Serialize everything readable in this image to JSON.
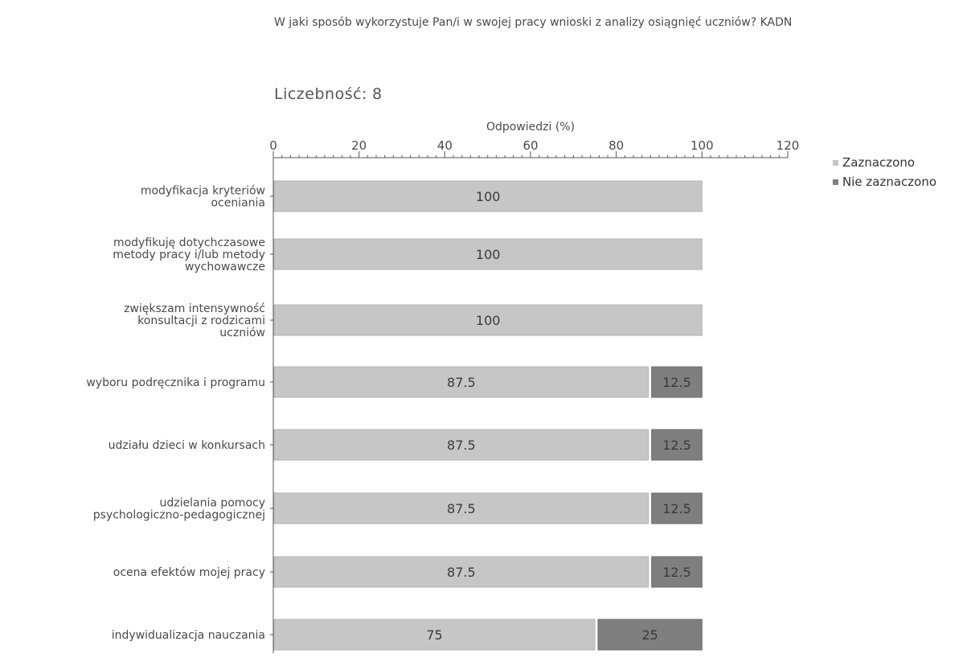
{
  "chart_data": {
    "type": "bar",
    "orientation": "horizontal",
    "stacked": true,
    "title": "W jaki sposób wykorzystuje Pan/i w swojej pracy wnioski z analizy osiągnięć uczniów? KADN",
    "count_label": "Liczebność:",
    "count_value": "8",
    "xlabel": "Odpowiedzi (%)",
    "xlim": [
      0,
      120
    ],
    "xticks": [
      0,
      20,
      40,
      60,
      80,
      100,
      120
    ],
    "legend_position": "top-right",
    "categories": [
      "modyfikacja kryteriów oceniania",
      "modyfikuję dotychczasowe metody pracy i/lub metody wychowawcze",
      "zwiększam intensywność konsultacji z rodzicami uczniów",
      "wyboru podręcznika i programu",
      "udziału dzieci w konkursach",
      "udzielania pomocy psychologiczno-pedagogicznej",
      "ocena efektów mojej pracy",
      "indywidualizacja nauczania"
    ],
    "category_lines": [
      [
        "modyfikacja kryteriów",
        "oceniania"
      ],
      [
        "modyfikuję dotychczasowe",
        "metody pracy i/lub metody",
        "wychowawcze"
      ],
      [
        "zwiększam intensywność",
        "konsultacji z rodzicami",
        "uczniów"
      ],
      [
        "wyboru podręcznika i programu"
      ],
      [
        "udziału dzieci w konkursach"
      ],
      [
        "udzielania pomocy",
        "psychologiczno-pedagogicznej"
      ],
      [
        "ocena efektów mojej pracy"
      ],
      [
        "indywidualizacja nauczania"
      ]
    ],
    "series": [
      {
        "name": "Zaznaczono",
        "color": "#c6c6c6",
        "values": [
          100,
          100,
          100,
          87.5,
          87.5,
          87.5,
          87.5,
          75
        ]
      },
      {
        "name": "Nie zaznaczono",
        "color": "#7f7f7f",
        "values": [
          0,
          0,
          0,
          12.5,
          12.5,
          12.5,
          12.5,
          25
        ]
      }
    ]
  }
}
